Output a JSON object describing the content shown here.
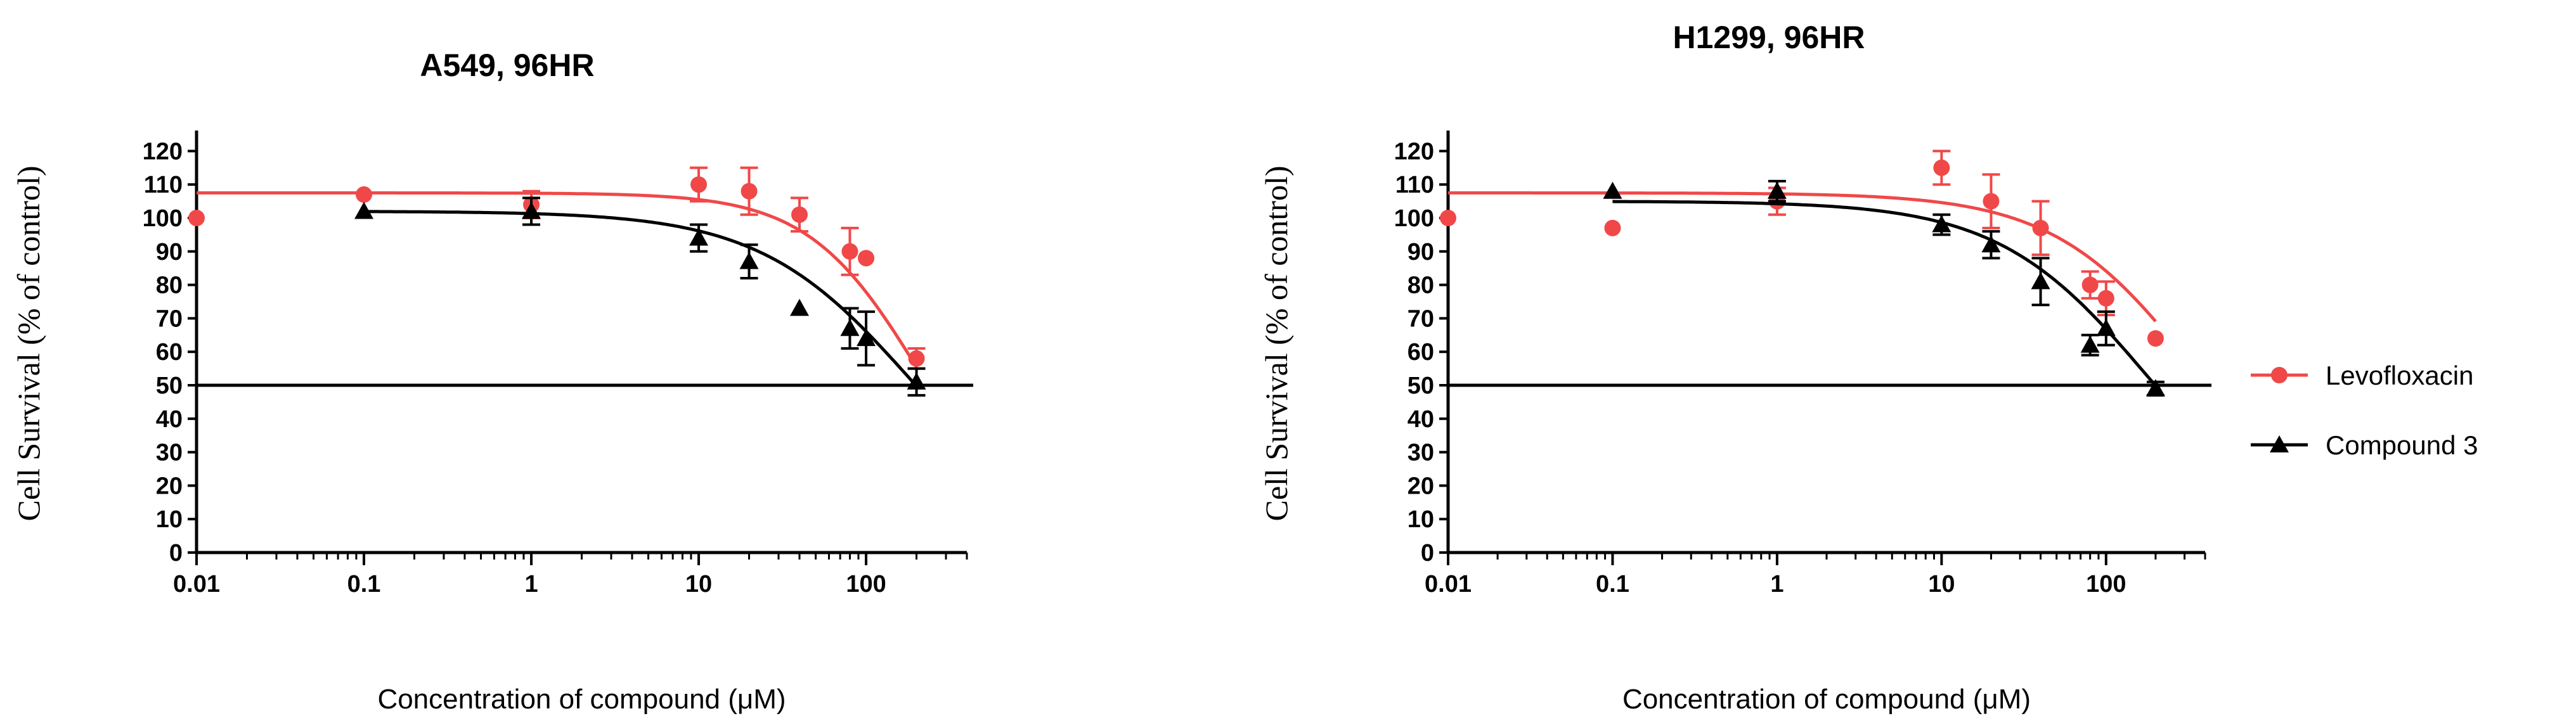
{
  "chart_data": [
    {
      "type": "scatter",
      "title": "A549, 96HR",
      "xlabel": "Concentration of compound (μM)",
      "ylabel": "Cell Survival (% of control)",
      "xscale": "log",
      "xlim": [
        0.01,
        400
      ],
      "ylim": [
        0,
        125
      ],
      "xticks": [
        0.01,
        0.1,
        1,
        10,
        100
      ],
      "xtick_labels": [
        "0.01",
        "0.1",
        "1",
        "10",
        "100"
      ],
      "yticks": [
        0,
        10,
        20,
        30,
        40,
        50,
        60,
        70,
        80,
        90,
        100,
        110,
        120
      ],
      "ytick_labels": [
        "0",
        "10",
        "20",
        "30",
        "40",
        "50",
        "60",
        "70",
        "80",
        "90",
        "100",
        "110",
        "120"
      ],
      "reference_line_y": 50,
      "series": [
        {
          "name": "Levofloxacin",
          "color": "#f04848",
          "marker": "circle",
          "x": [
            0.01,
            0.1,
            1,
            10,
            20,
            40,
            80,
            100,
            200
          ],
          "y": [
            100,
            107,
            104,
            110,
            108,
            101,
            90,
            88,
            58
          ],
          "err": [
            0,
            0,
            4,
            5,
            7,
            5,
            7,
            0,
            3
          ],
          "fit": {
            "top": 107.5,
            "ic50": 210,
            "hill": 1.3
          }
        },
        {
          "name": "Compound 3",
          "color": "#000000",
          "marker": "triangle",
          "x": [
            0.1,
            1,
            10,
            20,
            40,
            80,
            100,
            200
          ],
          "y": [
            102,
            102,
            94,
            87,
            73,
            67,
            64,
            51
          ],
          "err": [
            0,
            4,
            4,
            5,
            0,
            6,
            8,
            4
          ],
          "fit": {
            "top": 102,
            "ic50": 190,
            "hill": 0.95
          }
        }
      ]
    },
    {
      "type": "scatter",
      "title": "H1299, 96HR",
      "xlabel": "Concentration of compound (μM)",
      "ylabel": "Cell Survival (% of control)",
      "xscale": "log",
      "xlim": [
        0.01,
        400
      ],
      "ylim": [
        0,
        125
      ],
      "xticks": [
        0.01,
        0.1,
        1,
        10,
        100
      ],
      "xtick_labels": [
        "0.01",
        "0.1",
        "1",
        "10",
        "100"
      ],
      "yticks": [
        0,
        10,
        20,
        30,
        40,
        50,
        60,
        70,
        80,
        90,
        100,
        110,
        120
      ],
      "ytick_labels": [
        "0",
        "10",
        "20",
        "30",
        "40",
        "50",
        "60",
        "70",
        "80",
        "90",
        "100",
        "110",
        "120"
      ],
      "reference_line_y": 50,
      "series": [
        {
          "name": "Levofloxacin",
          "color": "#f04848",
          "marker": "circle",
          "x": [
            0.01,
            0.1,
            1,
            10,
            20,
            40,
            80,
            100,
            200
          ],
          "y": [
            100,
            97,
            105,
            115,
            105,
            97,
            80,
            76,
            64
          ],
          "err": [
            0,
            0,
            4,
            5,
            8,
            8,
            4,
            5,
            0
          ],
          "fit": {
            "top": 107.5,
            "ic50": 360,
            "hill": 1.0
          }
        },
        {
          "name": "Compound 3",
          "color": "#000000",
          "marker": "triangle",
          "x": [
            0.1,
            1,
            10,
            20,
            40,
            80,
            100,
            200
          ],
          "y": [
            108,
            108,
            98,
            92,
            81,
            62,
            67,
            49
          ],
          "err": [
            0,
            3,
            3,
            4,
            7,
            3,
            5,
            2
          ],
          "fit": {
            "top": 105,
            "ic50": 180,
            "hill": 0.95
          }
        }
      ]
    }
  ],
  "legend": {
    "placement": "right",
    "items": [
      {
        "label": "Levofloxacin",
        "color": "#f04848",
        "marker": "circle"
      },
      {
        "label": "Compound 3",
        "color": "#000000",
        "marker": "triangle"
      }
    ]
  }
}
